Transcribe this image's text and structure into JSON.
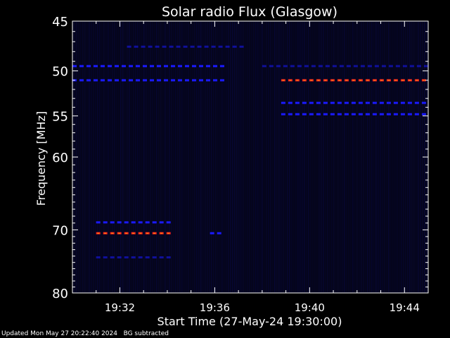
{
  "chart_data": {
    "type": "heatmap",
    "title": "Solar radio Flux (Glasgow)",
    "xlabel": "Start Time (27-May-24 19:30:00)",
    "ylabel": "Frequency [MHz]",
    "x_range_minutes": [
      0,
      15
    ],
    "y_range_mhz": [
      45,
      80
    ],
    "y_ticks": [
      {
        "value": 45,
        "label": "45"
      },
      {
        "value": 50,
        "label": "50"
      },
      {
        "value": 55,
        "label": "55"
      },
      {
        "value": 60,
        "label": "60"
      },
      {
        "value": 70,
        "label": "70"
      },
      {
        "value": 80,
        "label": "80"
      }
    ],
    "x_ticks": [
      {
        "minute": 2,
        "label": "19:32"
      },
      {
        "minute": 6,
        "label": "19:36"
      },
      {
        "minute": 10,
        "label": "19:40"
      },
      {
        "minute": 14,
        "label": "19:44"
      }
    ],
    "features": [
      {
        "t_start": 0.0,
        "t_end": 6.3,
        "freq": 49.5,
        "level": "medium"
      },
      {
        "t_start": 0.0,
        "t_end": 6.3,
        "freq": 51.0,
        "level": "medium"
      },
      {
        "t_start": 1.0,
        "t_end": 4.2,
        "freq": 68.9,
        "level": "medium"
      },
      {
        "t_start": 1.0,
        "t_end": 4.2,
        "freq": 70.5,
        "level": "high"
      },
      {
        "t_start": 1.0,
        "t_end": 4.2,
        "freq": 74.2,
        "level": "low"
      },
      {
        "t_start": 5.8,
        "t_end": 6.4,
        "freq": 70.5,
        "level": "medium"
      },
      {
        "t_start": 2.3,
        "t_end": 7.3,
        "freq": 47.5,
        "level": "low"
      },
      {
        "t_start": 8.8,
        "t_end": 15.0,
        "freq": 51.0,
        "level": "high"
      },
      {
        "t_start": 8.8,
        "t_end": 15.0,
        "freq": 53.5,
        "level": "medium"
      },
      {
        "t_start": 8.8,
        "t_end": 15.0,
        "freq": 54.8,
        "level": "medium"
      },
      {
        "t_start": 8.0,
        "t_end": 15.0,
        "freq": 49.5,
        "level": "low"
      }
    ],
    "colors": {
      "low": "#0a0a6e",
      "medium": "#1a1aff",
      "high": "#ff2020",
      "peak": "#ffb000",
      "background": "#05051a"
    }
  },
  "footer": {
    "updated": "Updated Mon May 27 20:22:40 2024",
    "bg_note": "BG subtracted"
  }
}
